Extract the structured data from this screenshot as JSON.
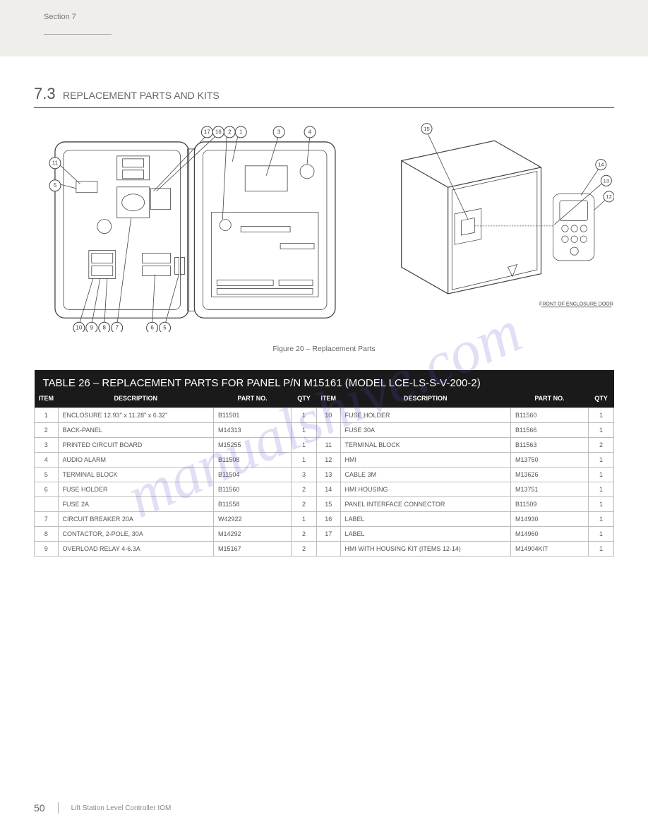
{
  "header": {
    "section_label": "Section 7",
    "page_number": "50",
    "footer_text": "Lift Station Level Controller IOM"
  },
  "title": {
    "section_number": "7.3",
    "section_title": "REPLACEMENT PARTS AND KITS"
  },
  "figure_label": "Figure 20 – Replacement Parts",
  "diagram_right_label": "FRONT OF ENCLOSURE DOOR",
  "callouts_left": [
    "1",
    "2",
    "3",
    "4",
    "5",
    "6",
    "7",
    "8",
    "9",
    "10",
    "11",
    "16",
    "17"
  ],
  "callouts_right": [
    "12",
    "13",
    "14",
    "15"
  ],
  "table": {
    "title": "TABLE 26 – REPLACEMENT PARTS FOR PANEL P/N M15161 (MODEL LCE-LS-S-V-200-2)",
    "header_row2": [
      "ITEM",
      "DESCRIPTION",
      "PART NO.",
      "QTY",
      "ITEM",
      "DESCRIPTION",
      "PART NO.",
      "QTY"
    ],
    "rows_left": [
      {
        "item": "1",
        "desc": "ENCLOSURE 12.93\" x 11.28\" x 6.32\"",
        "pn": "B11501",
        "qty": "1"
      },
      {
        "item": "2",
        "desc": "BACK-PANEL",
        "pn": "M14313",
        "qty": "1"
      },
      {
        "item": "3",
        "desc": "PRINTED CIRCUIT BOARD",
        "pn": "M15255",
        "qty": "1"
      },
      {
        "item": "4",
        "desc": "AUDIO ALARM",
        "pn": "B11508",
        "qty": "1"
      },
      {
        "item": "5",
        "desc": "TERMINAL BLOCK",
        "pn": "B11504",
        "qty": "3"
      },
      {
        "item": "6",
        "desc": "FUSE HOLDER",
        "pn": "B11560",
        "qty": "2"
      },
      {
        "item": "",
        "desc": "FUSE 2A",
        "pn": "B11558",
        "qty": "2"
      },
      {
        "item": "7",
        "desc": "CIRCUIT BREAKER 20A",
        "pn": "W42922",
        "qty": "1"
      },
      {
        "item": "8",
        "desc": "CONTACTOR, 2-POLE, 30A",
        "pn": "M14292",
        "qty": "2"
      },
      {
        "item": "9",
        "desc": "OVERLOAD RELAY 4-6.3A",
        "pn": "M15167",
        "qty": "2"
      }
    ],
    "rows_right": [
      {
        "item": "10",
        "desc": "FUSE HOLDER",
        "pn": "B11560",
        "qty": "1"
      },
      {
        "item": "",
        "desc": "FUSE 30A",
        "pn": "B11566",
        "qty": "1"
      },
      {
        "item": "11",
        "desc": "TERMINAL BLOCK",
        "pn": "B11563",
        "qty": "2"
      },
      {
        "item": "12",
        "desc": "HMI",
        "pn": "M13750",
        "qty": "1"
      },
      {
        "item": "13",
        "desc": "CABLE 3M",
        "pn": "M13626",
        "qty": "1"
      },
      {
        "item": "14",
        "desc": "HMI HOUSING",
        "pn": "M13751",
        "qty": "1"
      },
      {
        "item": "15",
        "desc": "PANEL INTERFACE CONNECTOR",
        "pn": "B11509",
        "qty": "1"
      },
      {
        "item": "16",
        "desc": "LABEL",
        "pn": "M14930",
        "qty": "1"
      },
      {
        "item": "17",
        "desc": "LABEL",
        "pn": "M14960",
        "qty": "1"
      },
      {
        "item": "",
        "desc": "HMI WITH HOUSING KIT (ITEMS 12-14)",
        "pn": "M14904KIT",
        "qty": "1"
      }
    ]
  },
  "watermark": "manualshive.com",
  "colors": {
    "page_bg": "#f0eeeb",
    "body_bg": "#ffffff",
    "table_header_bg": "#1a1a1a",
    "text_muted": "#666666",
    "border": "#bdbdbd"
  }
}
